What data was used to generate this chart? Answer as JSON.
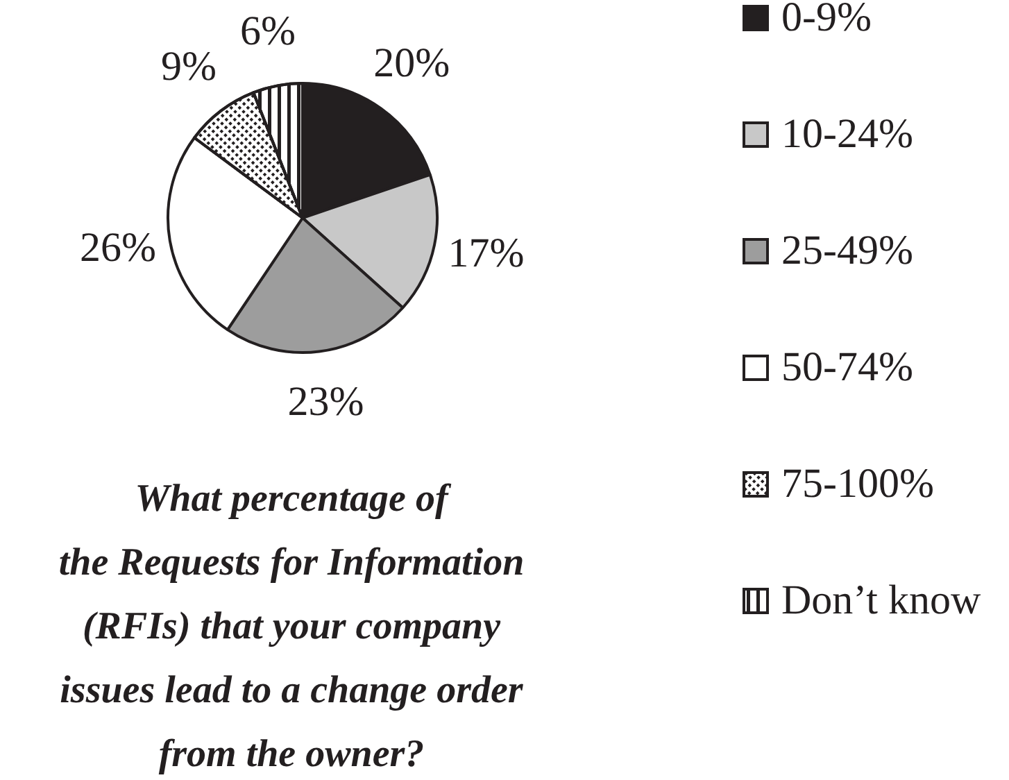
{
  "chart_data": {
    "type": "pie",
    "title": "What percentage of\nthe Requests for Information\n(RFIs) that your company\nissues lead to a change order\nfrom the owner?",
    "categories": [
      "0-9%",
      "10-24%",
      "25-49%",
      "50-74%",
      "75-100%",
      "Don’t know"
    ],
    "values": [
      20,
      17,
      23,
      26,
      9,
      6
    ],
    "colors": [
      "#231f20",
      "#c8c8c8",
      "#9d9d9d",
      "#ffffff",
      "#ffffff",
      "#ffffff"
    ],
    "value_labels": [
      "20%",
      "17%",
      "23%",
      "26%",
      "9%",
      "6%"
    ],
    "legend": "right"
  }
}
